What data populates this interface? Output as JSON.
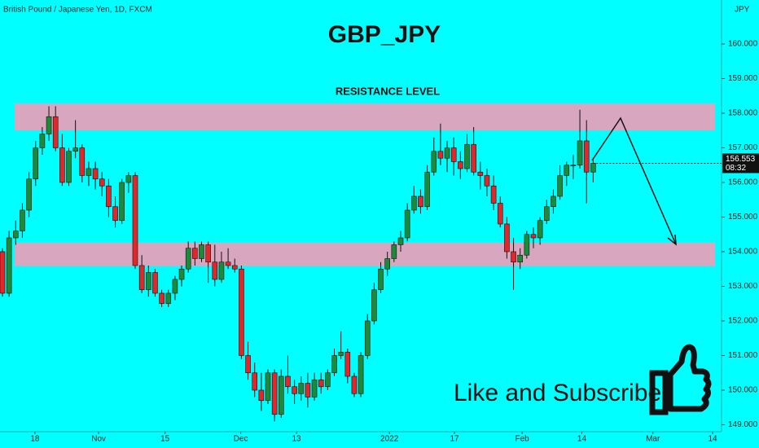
{
  "chart_data": {
    "type": "candlestick",
    "symbol": "British Pound / Japanese Yen, 1D, FXCM",
    "title": "GBP_JPY",
    "currency": "JPY",
    "cta": "Like and Subscribe",
    "up_color": "#1b8a3a",
    "down_color": "#e3262a",
    "zone_color": "#d9a6bf",
    "zones": [
      {
        "label": "RESISTANCE LEVEL",
        "top": 158.28,
        "bottom": 157.5
      },
      {
        "top": 154.26,
        "bottom": 153.58
      }
    ],
    "last_price": {
      "value": 156.553,
      "label": "156.553",
      "countdown": "08:32"
    },
    "ylim": [
      148.8,
      161.27
    ],
    "yticks": [
      {
        "value": 149,
        "label": "149.000"
      },
      {
        "value": 150,
        "label": "150.000"
      },
      {
        "value": 151,
        "label": "151.000"
      },
      {
        "value": 152,
        "label": "152.000"
      },
      {
        "value": 153,
        "label": "153.000"
      },
      {
        "value": 154,
        "label": "154.000"
      },
      {
        "value": 155,
        "label": "155.000"
      },
      {
        "value": 156,
        "label": "156.000"
      },
      {
        "value": 157,
        "label": "157.000"
      },
      {
        "value": 158,
        "label": "158.000"
      },
      {
        "value": 159,
        "label": "159.000"
      },
      {
        "value": 160,
        "label": "160.000"
      }
    ],
    "xticks": [
      {
        "value": 4.9,
        "label": "18"
      },
      {
        "value": 14.5,
        "label": "Nov"
      },
      {
        "value": 24.5,
        "label": "15"
      },
      {
        "value": 35.9,
        "label": "Dec"
      },
      {
        "value": 44.3,
        "label": "13"
      },
      {
        "value": 58.3,
        "label": "2022"
      },
      {
        "value": 68.1,
        "label": "17"
      },
      {
        "value": 78.3,
        "label": "Feb"
      },
      {
        "value": 87.3,
        "label": "14"
      },
      {
        "value": 98,
        "label": "Mar"
      },
      {
        "value": 107,
        "label": "14"
      }
    ],
    "candles": [
      [
        154.0,
        154.1,
        152.7,
        152.8
      ],
      [
        152.8,
        154.6,
        152.7,
        154.4
      ],
      [
        154.4,
        154.9,
        154.2,
        154.6
      ],
      [
        154.6,
        155.4,
        154.4,
        155.2
      ],
      [
        155.2,
        156.3,
        155.0,
        156.1
      ],
      [
        156.1,
        157.2,
        155.9,
        157.0
      ],
      [
        157.0,
        157.6,
        156.8,
        157.4
      ],
      [
        157.4,
        158.2,
        157.2,
        157.9
      ],
      [
        157.9,
        158.2,
        156.9,
        157.0
      ],
      [
        157.0,
        157.4,
        155.9,
        156.0
      ],
      [
        156.0,
        157.0,
        155.9,
        156.9
      ],
      [
        156.9,
        157.8,
        156.7,
        157.0
      ],
      [
        157.0,
        157.1,
        156.0,
        156.2
      ],
      [
        156.2,
        156.6,
        155.9,
        156.4
      ],
      [
        156.4,
        156.6,
        155.8,
        156.1
      ],
      [
        156.1,
        156.3,
        155.6,
        155.9
      ],
      [
        155.9,
        156.1,
        155.0,
        155.3
      ],
      [
        155.3,
        155.6,
        154.7,
        154.9
      ],
      [
        154.9,
        156.1,
        154.8,
        156.0
      ],
      [
        156.0,
        156.3,
        155.7,
        156.2
      ],
      [
        156.2,
        156.3,
        153.5,
        153.6
      ],
      [
        153.6,
        153.9,
        152.8,
        152.9
      ],
      [
        152.9,
        153.6,
        152.7,
        153.4
      ],
      [
        153.4,
        153.5,
        152.7,
        152.8
      ],
      [
        152.8,
        152.9,
        152.4,
        152.5
      ],
      [
        152.5,
        152.9,
        152.4,
        152.8
      ],
      [
        152.8,
        153.3,
        152.6,
        153.2
      ],
      [
        153.2,
        153.6,
        153.0,
        153.5
      ],
      [
        153.5,
        154.3,
        153.4,
        154.1
      ],
      [
        154.1,
        154.3,
        153.6,
        153.8
      ],
      [
        153.8,
        154.3,
        153.7,
        154.2
      ],
      [
        154.2,
        154.3,
        153.1,
        153.7
      ],
      [
        153.7,
        154.2,
        153.0,
        153.2
      ],
      [
        153.2,
        154.0,
        153.1,
        153.7
      ],
      [
        153.7,
        154.1,
        153.5,
        153.6
      ],
      [
        153.6,
        153.8,
        153.4,
        153.5
      ],
      [
        153.5,
        153.6,
        150.9,
        151.0
      ],
      [
        151.0,
        151.4,
        150.3,
        150.5
      ],
      [
        150.5,
        150.8,
        149.8,
        150.0
      ],
      [
        150.0,
        150.5,
        149.4,
        149.7
      ],
      [
        149.7,
        150.6,
        149.6,
        150.5
      ],
      [
        150.5,
        150.6,
        149.1,
        149.3
      ],
      [
        149.3,
        150.6,
        149.2,
        150.4
      ],
      [
        150.4,
        151.0,
        149.9,
        150.1
      ],
      [
        150.1,
        150.3,
        149.6,
        149.9
      ],
      [
        149.9,
        150.4,
        149.7,
        150.2
      ],
      [
        150.2,
        150.5,
        149.5,
        149.8
      ],
      [
        149.8,
        150.5,
        149.7,
        150.3
      ],
      [
        150.3,
        150.5,
        149.9,
        150.1
      ],
      [
        150.1,
        150.6,
        150.0,
        150.5
      ],
      [
        150.5,
        151.2,
        150.4,
        151.0
      ],
      [
        151.0,
        151.7,
        150.9,
        151.1
      ],
      [
        151.1,
        151.2,
        150.2,
        150.4
      ],
      [
        150.4,
        150.5,
        149.8,
        149.9
      ],
      [
        149.9,
        151.1,
        149.8,
        151.0
      ],
      [
        151.0,
        152.2,
        150.9,
        152.0
      ],
      [
        152.0,
        153.1,
        151.9,
        152.9
      ],
      [
        152.9,
        153.7,
        152.8,
        153.5
      ],
      [
        153.5,
        154.0,
        153.3,
        153.8
      ],
      [
        153.8,
        154.3,
        153.7,
        154.2
      ],
      [
        154.2,
        154.6,
        154.0,
        154.4
      ],
      [
        154.4,
        155.4,
        154.3,
        155.2
      ],
      [
        155.2,
        155.9,
        155.1,
        155.6
      ],
      [
        155.6,
        155.8,
        155.1,
        155.3
      ],
      [
        155.3,
        156.5,
        155.2,
        156.3
      ],
      [
        156.3,
        157.3,
        156.2,
        156.9
      ],
      [
        156.9,
        157.7,
        156.5,
        156.7
      ],
      [
        156.7,
        157.2,
        156.3,
        157.0
      ],
      [
        157.0,
        157.3,
        156.2,
        156.6
      ],
      [
        156.6,
        156.9,
        156.1,
        156.4
      ],
      [
        156.4,
        157.4,
        156.3,
        157.1
      ],
      [
        157.1,
        157.6,
        156.2,
        156.3
      ],
      [
        156.3,
        156.6,
        155.8,
        156.2
      ],
      [
        156.2,
        156.4,
        155.6,
        155.9
      ],
      [
        155.9,
        156.2,
        155.2,
        155.4
      ],
      [
        155.4,
        155.6,
        154.7,
        154.8
      ],
      [
        154.8,
        155.0,
        153.8,
        154.0
      ],
      [
        154.0,
        154.4,
        152.9,
        153.7
      ],
      [
        153.7,
        154.1,
        153.5,
        153.9
      ],
      [
        153.9,
        154.6,
        153.8,
        154.5
      ],
      [
        154.5,
        154.7,
        154.1,
        154.4
      ],
      [
        154.4,
        155.0,
        154.2,
        154.9
      ],
      [
        154.9,
        155.5,
        154.8,
        155.3
      ],
      [
        155.3,
        155.8,
        155.1,
        155.6
      ],
      [
        155.6,
        156.5,
        155.5,
        156.2
      ],
      [
        156.2,
        156.6,
        155.9,
        156.5
      ],
      [
        156.5,
        156.8,
        156.1,
        156.5
      ],
      [
        156.5,
        158.1,
        156.4,
        157.2
      ],
      [
        157.2,
        157.8,
        155.4,
        156.3
      ],
      [
        156.3,
        156.7,
        156.0,
        156.553
      ]
    ]
  }
}
